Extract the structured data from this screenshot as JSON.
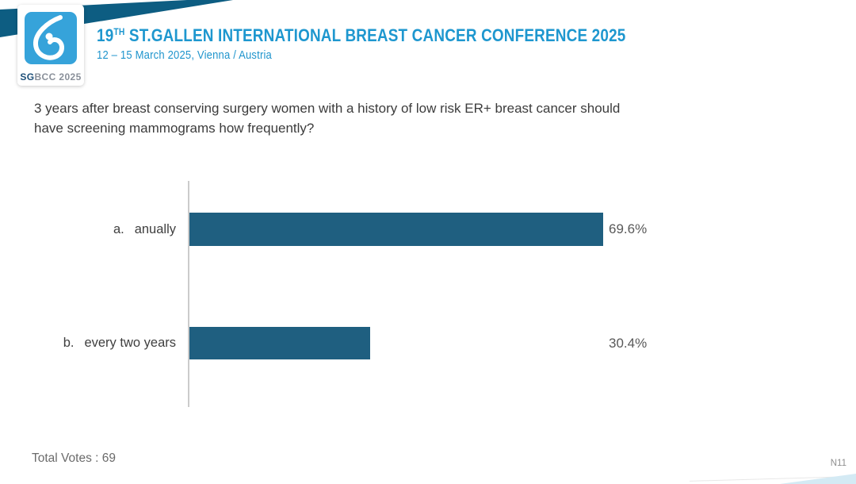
{
  "logo": {
    "wordmark_sg": "SG",
    "wordmark_rest": "BCC 2025",
    "square_color": "#36A3DA"
  },
  "header": {
    "title_num": "19",
    "title_sup": "TH",
    "title_rest": " ST.GALLEN INTERNATIONAL BREAST CANCER CONFERENCE 2025",
    "subtitle": "12 – 15 March 2025, Vienna / Austria",
    "accent_color": "#1E97CF",
    "banner_color": "#0D5D82"
  },
  "question": {
    "line1": "3 years after breast conserving surgery women with a history of low risk ER+ breast cancer should",
    "line2": "have screening mammograms how frequently?"
  },
  "chart_data": {
    "type": "bar",
    "orientation": "horizontal",
    "option_letters": [
      "a.",
      "b."
    ],
    "categories": [
      "anually",
      "every two years"
    ],
    "values": [
      69.6,
      30.4
    ],
    "value_labels": [
      "69.6%",
      "30.4%"
    ],
    "xlim": [
      0,
      100
    ],
    "bar_color": "#1F5F80",
    "axis_color": "#CBCBCB",
    "grid": false,
    "legend": false
  },
  "footer": {
    "total_votes": "Total Votes : 69",
    "slide_code": "N11"
  }
}
